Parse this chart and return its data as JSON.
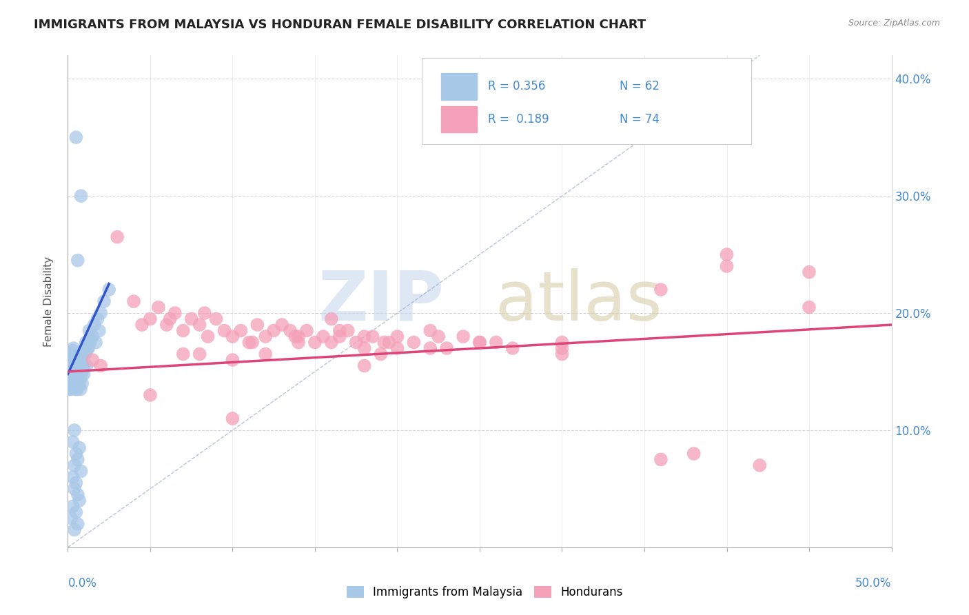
{
  "title": "IMMIGRANTS FROM MALAYSIA VS HONDURAN FEMALE DISABILITY CORRELATION CHART",
  "source": "Source: ZipAtlas.com",
  "ylabel": "Female Disability",
  "xlim": [
    0.0,
    50.0
  ],
  "ylim": [
    0.0,
    42.0
  ],
  "legend_label1": "Immigrants from Malaysia",
  "legend_label2": "Hondurans",
  "blue_color": "#a8c8e8",
  "pink_color": "#f4a0b8",
  "blue_line_color": "#3355cc",
  "pink_line_color": "#dd4477",
  "ref_line_color": "#aabbcc",
  "background_color": "#ffffff",
  "blue_scatter_x": [
    0.1,
    0.15,
    0.12,
    0.08,
    0.2,
    0.25,
    0.18,
    0.3,
    0.22,
    0.35,
    0.4,
    0.45,
    0.5,
    0.55,
    0.6,
    0.65,
    0.7,
    0.75,
    0.8,
    0.85,
    0.9,
    0.95,
    1.0,
    1.1,
    1.2,
    1.3,
    1.4,
    1.5,
    1.6,
    1.7,
    1.8,
    1.9,
    2.0,
    2.2,
    2.5,
    0.05,
    0.07,
    0.09,
    0.11,
    0.13,
    0.16,
    0.19,
    0.23,
    0.27,
    0.32,
    0.37,
    0.42,
    0.47,
    0.52,
    0.57,
    0.62,
    0.67,
    0.72,
    0.77,
    0.82,
    0.87,
    0.92,
    0.97,
    1.05,
    1.15,
    1.25,
    1.35
  ],
  "blue_scatter_y": [
    16.5,
    16.0,
    15.5,
    15.8,
    15.2,
    16.2,
    15.0,
    16.8,
    15.5,
    17.0,
    15.3,
    16.5,
    14.8,
    15.8,
    15.5,
    16.0,
    14.5,
    15.2,
    15.8,
    15.0,
    16.5,
    15.3,
    16.8,
    17.5,
    17.0,
    18.5,
    17.8,
    18.0,
    19.0,
    17.5,
    19.5,
    18.5,
    20.0,
    21.0,
    22.0,
    14.5,
    13.5,
    14.0,
    13.8,
    14.2,
    13.5,
    14.0,
    13.8,
    14.5,
    14.0,
    14.5,
    14.0,
    13.5,
    14.8,
    13.5,
    14.5,
    13.8,
    14.2,
    13.5,
    14.8,
    14.0,
    15.5,
    14.8,
    16.5,
    15.5,
    17.0,
    17.5
  ],
  "blue_scatter_x_outliers": [
    0.5,
    0.8,
    0.6,
    0.4,
    0.3,
    0.7,
    0.5,
    0.6,
    0.4,
    0.8,
    0.3,
    0.5,
    0.4,
    0.6,
    0.7,
    0.3,
    0.5,
    0.2,
    0.6,
    0.4
  ],
  "blue_scatter_y_outliers": [
    35.0,
    30.0,
    24.5,
    10.0,
    9.0,
    8.5,
    8.0,
    7.5,
    7.0,
    6.5,
    6.0,
    5.5,
    5.0,
    4.5,
    4.0,
    3.5,
    3.0,
    2.5,
    2.0,
    1.5
  ],
  "pink_scatter_x": [
    1.5,
    2.0,
    3.0,
    4.0,
    5.0,
    5.5,
    6.0,
    6.5,
    7.0,
    7.5,
    8.0,
    8.5,
    9.0,
    9.5,
    10.0,
    10.5,
    11.0,
    11.5,
    12.0,
    12.5,
    13.0,
    13.5,
    14.0,
    14.5,
    15.0,
    15.5,
    16.0,
    16.5,
    17.0,
    17.5,
    18.0,
    18.5,
    19.0,
    19.5,
    20.0,
    21.0,
    22.0,
    23.0,
    24.0,
    25.0,
    27.0,
    30.0,
    36.0,
    40.0,
    45.0,
    4.5,
    6.2,
    8.3,
    11.2,
    13.8,
    16.5,
    19.2,
    22.5,
    10.0,
    14.0,
    18.0,
    22.0,
    26.0,
    30.0,
    40.0,
    36.0,
    45.0,
    12.0,
    20.0,
    8.0,
    16.0,
    5.0,
    10.0,
    18.0,
    25.0,
    30.0,
    38.0,
    42.0,
    7.0
  ],
  "pink_scatter_y": [
    16.0,
    15.5,
    26.5,
    21.0,
    19.5,
    20.5,
    19.0,
    20.0,
    18.5,
    19.5,
    19.0,
    18.0,
    19.5,
    18.5,
    18.0,
    18.5,
    17.5,
    19.0,
    18.0,
    18.5,
    19.0,
    18.5,
    18.0,
    18.5,
    17.5,
    18.0,
    19.5,
    18.0,
    18.5,
    17.5,
    17.0,
    18.0,
    16.5,
    17.5,
    18.0,
    17.5,
    18.5,
    17.0,
    18.0,
    17.5,
    17.0,
    17.5,
    22.0,
    25.0,
    20.5,
    19.0,
    19.5,
    20.0,
    17.5,
    18.0,
    18.5,
    17.5,
    18.0,
    11.0,
    17.5,
    15.5,
    17.0,
    17.5,
    17.0,
    24.0,
    7.5,
    23.5,
    16.5,
    17.0,
    16.5,
    17.5,
    13.0,
    16.0,
    18.0,
    17.5,
    16.5,
    8.0,
    7.0,
    16.5
  ],
  "blue_line_x": [
    0.0,
    2.5
  ],
  "blue_line_y": [
    14.8,
    22.5
  ],
  "pink_line_x": [
    0.0,
    50.0
  ],
  "pink_line_y": [
    15.0,
    19.0
  ]
}
